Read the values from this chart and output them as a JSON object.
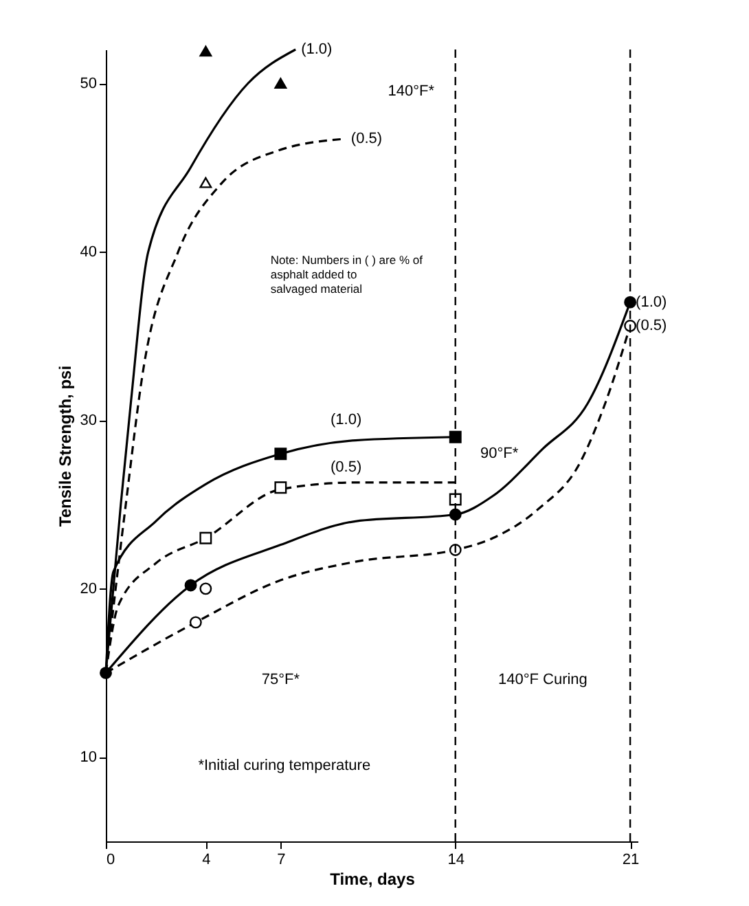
{
  "chart_data": {
    "type": "line",
    "xlabel": "Time, days",
    "ylabel": "Tensile Strength, psi",
    "xlim": [
      0,
      21.3
    ],
    "ylim": [
      5,
      52
    ],
    "xticks": [
      0,
      4,
      7,
      14,
      21
    ],
    "yticks": [
      10,
      20,
      30,
      40,
      50
    ],
    "grid": false,
    "series": [
      {
        "color": "#000000",
        "line_style": "solid",
        "marker": "none",
        "x": [
          0,
          0.6,
          1.0,
          1.7,
          3.4,
          5.7,
          7.6
        ],
        "values": [
          15,
          25,
          31,
          40,
          45,
          50,
          52
        ]
      },
      {
        "color": "#000000",
        "line_style": "dashed",
        "marker": "none",
        "x": [
          0,
          0.8,
          1.5,
          2.9,
          4.6,
          6.9,
          9.6
        ],
        "values": [
          15,
          25,
          33,
          40,
          44,
          46,
          46.7
        ]
      },
      {
        "type": "scatter",
        "color": "#000000",
        "marker": "triangle",
        "x": [
          4,
          7
        ],
        "values": [
          51.9,
          50
        ]
      },
      {
        "type": "scatter",
        "color": "#ffffff",
        "marker": "triangle",
        "x": [
          4
        ],
        "values": [
          44.1
        ]
      },
      {
        "color": "#000000",
        "line_style": "solid",
        "marker": "none",
        "x": [
          0,
          0.3,
          2,
          4,
          7,
          10,
          14
        ],
        "values": [
          15,
          21,
          24,
          26.2,
          28,
          28.8,
          29
        ]
      },
      {
        "type": "scatter",
        "color": "#000000",
        "marker": "square",
        "x": [
          7,
          14
        ],
        "values": [
          28,
          29
        ]
      },
      {
        "color": "#000000",
        "line_style": "dashed",
        "marker": "none",
        "x": [
          0,
          0.5,
          2,
          4,
          7,
          10,
          14
        ],
        "values": [
          15,
          19,
          21.5,
          23,
          25.9,
          26.3,
          26.3
        ]
      },
      {
        "type": "scatter",
        "color": "#ffffff",
        "marker": "square",
        "x": [
          4,
          7,
          14
        ],
        "values": [
          23,
          26,
          25.3
        ]
      },
      {
        "color": "#000000",
        "line_style": "solid",
        "marker": "none",
        "x": [
          0,
          3.4,
          7,
          10,
          14,
          15.5,
          17.5,
          19.3,
          21
        ],
        "values": [
          15,
          20.2,
          22.6,
          24,
          24.4,
          25.5,
          28.3,
          31,
          37
        ]
      },
      {
        "type": "scatter",
        "color": "#000000",
        "marker": "circle",
        "x": [
          0,
          3.4,
          14,
          21
        ],
        "values": [
          15,
          20.2,
          24.4,
          37
        ]
      },
      {
        "color": "#000000",
        "line_style": "dashed",
        "marker": "none",
        "x": [
          0,
          3.6,
          7,
          10,
          14,
          15.5,
          17.3,
          19,
          20,
          21
        ],
        "values": [
          15,
          18,
          20.5,
          21.6,
          22.3,
          23,
          24.7,
          27.5,
          31,
          35.6
        ]
      },
      {
        "type": "scatter",
        "color": "#ffffff",
        "marker": "circle",
        "x": [
          3.6,
          4,
          14,
          21
        ],
        "values": [
          18,
          20,
          22.3,
          35.6
        ]
      }
    ],
    "ref_lines": [
      {
        "axis": "x",
        "value": 14,
        "line_style": "dashed"
      },
      {
        "axis": "x",
        "value": 21,
        "line_style": "dashed"
      }
    ],
    "annotations": [
      {
        "text": "(1.0)",
        "x": 7.6,
        "y": 52
      },
      {
        "text": "(0.5)",
        "x": 9.6,
        "y": 46.7
      },
      {
        "text": "(1.0)",
        "x": 21,
        "y": 37
      },
      {
        "text": "(0.5)",
        "x": 21,
        "y": 35.6
      },
      "140°F*",
      "(1.0)",
      "(0.5)",
      "90°F*",
      "Note: Numbers in ( ) are % of\nasphalt added to\nsalvaged material",
      "75°F*",
      "140°F Curing",
      "*Initial curing temperature"
    ]
  }
}
